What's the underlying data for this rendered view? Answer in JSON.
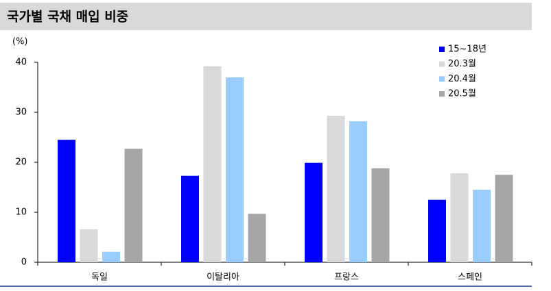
{
  "chart_data": {
    "type": "bar",
    "title": "국가별 국채 매입 비중",
    "y_label": "(%)",
    "categories": [
      "독일",
      "이탈리아",
      "프랑스",
      "스페인"
    ],
    "series": [
      {
        "name": "15~18년",
        "color": "#0000ff",
        "values": [
          24.5,
          17.3,
          19.9,
          12.5
        ]
      },
      {
        "name": "20.3월",
        "color": "#d9d9d9",
        "values": [
          6.6,
          39.2,
          29.3,
          17.8
        ]
      },
      {
        "name": "20.4월",
        "color": "#99ccff",
        "values": [
          2.1,
          37.0,
          28.2,
          14.5
        ]
      },
      {
        "name": "20.5월",
        "color": "#a6a6a6",
        "values": [
          22.7,
          9.7,
          18.8,
          17.5
        ]
      }
    ],
    "ylim": [
      0,
      40
    ],
    "yticks": [
      0,
      10,
      20,
      30,
      40
    ],
    "grid": false,
    "legend": "top-right"
  }
}
